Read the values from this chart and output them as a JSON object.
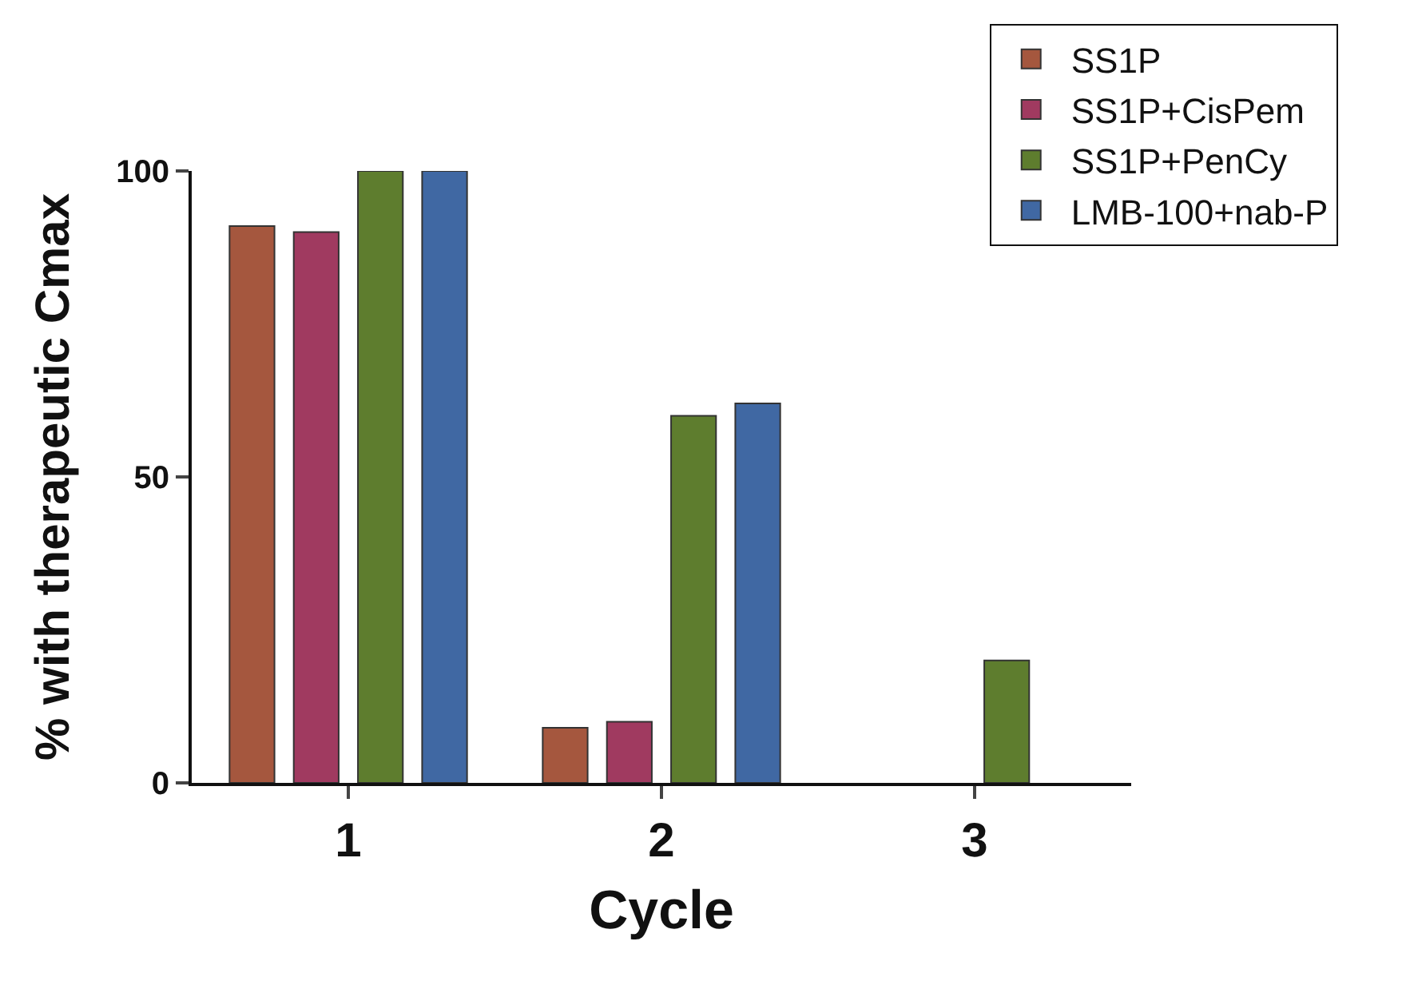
{
  "chart_data": {
    "type": "bar",
    "xlabel": "Cycle",
    "ylabel": "% with therapeutic Cmax",
    "categories": [
      "1",
      "2",
      "3"
    ],
    "series": [
      {
        "name": "SS1P",
        "color": "#a5573e",
        "values": [
          91,
          9,
          null
        ]
      },
      {
        "name": "SS1P+CisPem",
        "color": "#a03a60",
        "values": [
          90,
          10,
          null
        ]
      },
      {
        "name": "SS1P+PenCy",
        "color": "#5e7d2e",
        "values": [
          100,
          60,
          20
        ]
      },
      {
        "name": "LMB-100+nab-P",
        "color": "#4068a3",
        "values": [
          100,
          62,
          null
        ]
      }
    ],
    "ylim": [
      0,
      100
    ],
    "yticks": [
      0,
      50,
      100
    ],
    "legend": "top right"
  }
}
